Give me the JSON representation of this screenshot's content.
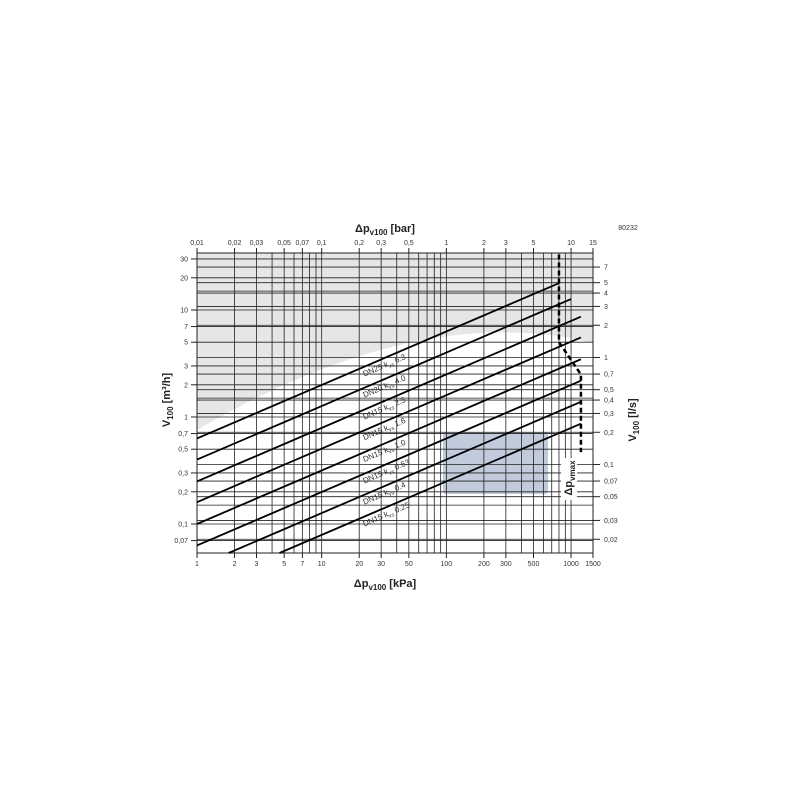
{
  "chart_data": {
    "type": "line",
    "scale": "log-log",
    "grid": true,
    "figure_code": "80232",
    "x_bottom": {
      "label_main": "Δp",
      "label_sub": "v100",
      "label_unit": " [kPa]",
      "range": [
        1,
        1500
      ],
      "ticks": [
        1,
        2,
        3,
        5,
        7,
        10,
        20,
        30,
        50,
        100,
        200,
        300,
        500,
        1000,
        1500
      ],
      "tick_labels": [
        "1",
        "2",
        "3",
        "5",
        "7",
        "10",
        "20",
        "30",
        "50",
        "100",
        "200",
        "300",
        "500",
        "1000",
        "1500"
      ]
    },
    "x_top": {
      "label_main": "Δp",
      "label_sub": "v100",
      "label_unit": " [bar]",
      "ticks": [
        0.01,
        0.02,
        0.03,
        0.05,
        0.07,
        0.1,
        0.2,
        0.3,
        0.5,
        1,
        2,
        3,
        5,
        10,
        15
      ],
      "tick_labels": [
        "0,01",
        "0,02",
        "0,03",
        "0,05",
        "0,07",
        "0,1",
        "0,2",
        "0,3",
        "0,5",
        "1",
        "2",
        "3",
        "5",
        "10",
        "15"
      ]
    },
    "y_left": {
      "label_main": "V",
      "label_sub": "100",
      "label_unit": " [m³/h]",
      "range": [
        0.054,
        33
      ],
      "ticks": [
        30,
        20,
        10,
        7,
        5,
        3,
        2,
        1,
        0.7,
        0.5,
        0.3,
        0.2,
        0.1,
        0.07
      ],
      "tick_labels": [
        "30",
        "20",
        "10",
        "7",
        "5",
        "3",
        "2",
        "1",
        "0,7",
        "0,5",
        "0,3",
        "0,2",
        "0,1",
        "0,07"
      ]
    },
    "y_right": {
      "label_main": "V",
      "label_sub": "100",
      "label_unit": " [l/s]",
      "ticks": [
        7,
        5,
        4,
        3,
        2,
        1,
        0.7,
        0.5,
        0.4,
        0.3,
        0.2,
        0.1,
        0.07,
        0.05,
        0.03,
        0.02
      ],
      "tick_labels": [
        "7",
        "5",
        "4",
        "3",
        "2",
        "1",
        "0,7",
        "0,5",
        "0,4",
        "0,3",
        "0,2",
        "0,1",
        "0,07",
        "0,05",
        "0,03",
        "0,02"
      ]
    },
    "series": [
      {
        "name": "DN25 kvs 6.3",
        "dn": "DN25",
        "kvs": "6.3",
        "kv": 6.3,
        "dp_max_kpa": 800
      },
      {
        "name": "DN20 kvs 4.0",
        "dn": "DN20",
        "kvs": "4.0",
        "kv": 4.0,
        "dp_max_kpa": 1000
      },
      {
        "name": "DN15 kvs 2.5",
        "dn": "DN15",
        "kvs": "2.5",
        "kv": 2.5,
        "dp_max_kpa": 1200
      },
      {
        "name": "DN15 kvs 1.6",
        "dn": "DN15",
        "kvs": "1.6",
        "kv": 1.6,
        "dp_max_kpa": 1200
      },
      {
        "name": "DN15 kvs 1.0",
        "dn": "DN15",
        "kvs": "1.0",
        "kv": 1.0,
        "dp_max_kpa": 1200
      },
      {
        "name": "DN15 kvs 0.63",
        "dn": "DN15",
        "kvs": "0.63",
        "kv": 0.63,
        "dp_max_kpa": 1200
      },
      {
        "name": "DN15 kvs 0.4",
        "dn": "DN15",
        "kvs": "0.4",
        "kv": 0.4,
        "dp_max_kpa": 1200
      },
      {
        "name": "DN15 kvs 0.25",
        "dn": "DN15",
        "kvs": "0.25",
        "kv": 0.25,
        "dp_max_kpa": 1200
      }
    ],
    "limit_curve": {
      "label_main": "Δp",
      "label_sub": "vmax",
      "style": "dashed",
      "points": [
        [
          800,
          33
        ],
        [
          800,
          5.0
        ],
        [
          1200,
          2.5
        ],
        [
          1200,
          0.47
        ]
      ]
    },
    "colors": {
      "lines": "#000000",
      "grid": "#222222",
      "background_shade": "#e6e6e6"
    }
  }
}
